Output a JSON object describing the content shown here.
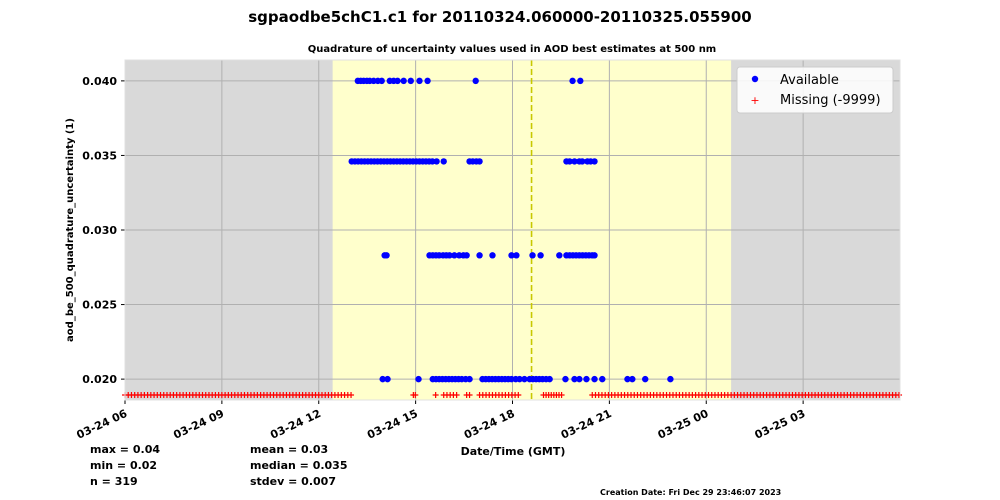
{
  "chart_data": {
    "type": "scatter",
    "title": "sgpaodbe5chC1.c1 for 20110324.060000-20110325.055900",
    "subtitle": "Quadrature of uncertainty values used in AOD best estimates at 500 nm",
    "xlabel": "Date/Time (GMT)",
    "ylabel": "aod_be_500_quadrature_uncertainty (1)",
    "x_units": "hours since 2011-03-24 00:00 GMT",
    "xlim": [
      6.0,
      30.0
    ],
    "ylim": [
      0.0186,
      0.0414
    ],
    "grid": true,
    "x_ticks": [
      {
        "value": 6,
        "label": "03-24 06"
      },
      {
        "value": 9,
        "label": "03-24 09"
      },
      {
        "value": 12,
        "label": "03-24 12"
      },
      {
        "value": 15,
        "label": "03-24 15"
      },
      {
        "value": 18,
        "label": "03-24 18"
      },
      {
        "value": 21,
        "label": "03-24 21"
      },
      {
        "value": 24,
        "label": "03-25 00"
      },
      {
        "value": 27,
        "label": "03-25 03"
      }
    ],
    "y_ticks": [
      {
        "value": 0.02,
        "label": "0.020"
      },
      {
        "value": 0.025,
        "label": "0.025"
      },
      {
        "value": 0.03,
        "label": "0.030"
      },
      {
        "value": 0.035,
        "label": "0.035"
      },
      {
        "value": 0.04,
        "label": "0.040"
      }
    ],
    "daylight_span": [
      12.43,
      24.77
    ],
    "solar_noon_line": 18.59,
    "legend": {
      "placement": "top-right",
      "entries": [
        "Available",
        "Missing (-9999)"
      ]
    },
    "colors": {
      "available": "#0000ff",
      "missing": "#ff0000",
      "daylight": "#ffffcc",
      "night": "#d9d9d9",
      "noon_line": "#c8c800"
    },
    "series": [
      {
        "name": "Available",
        "groups": [
          {
            "y": 0.04,
            "x": [
              13.21,
              13.3,
              13.39,
              13.49,
              13.58,
              13.7,
              13.83,
              13.95,
              14.2,
              14.32,
              14.44,
              14.63,
              14.85,
              15.12,
              15.37,
              16.86,
              19.86,
              20.1
            ]
          },
          {
            "y": 0.0346,
            "x": [
              13.02,
              13.12,
              13.22,
              13.32,
              13.42,
              13.52,
              13.62,
              13.72,
              13.82,
              13.92,
              14.02,
              14.12,
              14.22,
              14.32,
              14.42,
              14.52,
              14.62,
              14.72,
              14.82,
              14.92,
              15.02,
              15.12,
              15.22,
              15.32,
              15.42,
              15.52,
              15.65,
              15.87,
              16.67,
              16.77,
              16.88,
              16.98,
              19.67,
              19.77,
              19.92,
              20.07,
              20.16,
              20.32,
              20.42,
              20.54
            ]
          },
          {
            "y": 0.0283,
            "x": [
              14.04,
              14.1,
              15.43,
              15.53,
              15.63,
              15.73,
              15.85,
              15.95,
              16.05,
              16.2,
              16.35,
              16.48,
              16.58,
              16.98,
              17.38,
              17.97,
              18.12,
              18.62,
              18.87,
              19.45,
              19.67,
              19.77,
              19.87,
              19.97,
              20.07,
              20.17,
              20.27,
              20.37,
              20.47,
              20.54
            ]
          },
          {
            "y": 0.02,
            "x": [
              13.98,
              14.13,
              15.09,
              15.53,
              15.63,
              15.73,
              15.83,
              15.93,
              16.03,
              16.13,
              16.23,
              16.33,
              16.43,
              16.55,
              16.67,
              17.07,
              17.17,
              17.27,
              17.37,
              17.47,
              17.57,
              17.67,
              17.77,
              17.87,
              17.97,
              18.1,
              18.22,
              18.37,
              18.53,
              18.63,
              18.73,
              18.83,
              18.93,
              19.04,
              19.15,
              19.64,
              19.92,
              20.07,
              20.29,
              20.54,
              20.78,
              21.56,
              21.71,
              22.11,
              22.89
            ]
          }
        ]
      },
      {
        "name": "Missing (-9999)",
        "runs": [
          {
            "from": 6.0,
            "to": 13.0,
            "step": 0.1
          },
          {
            "from": 14.93,
            "to": 14.99,
            "step": 0.06
          },
          {
            "from": 15.62,
            "to": 15.62,
            "step": 0.1
          },
          {
            "from": 15.87,
            "to": 16.33,
            "step": 0.1
          },
          {
            "from": 16.58,
            "to": 16.67,
            "step": 0.09
          },
          {
            "from": 16.98,
            "to": 18.22,
            "step": 0.1
          },
          {
            "from": 18.96,
            "to": 19.52,
            "step": 0.08
          },
          {
            "from": 20.47,
            "to": 29.97,
            "step": 0.1
          }
        ]
      }
    ],
    "stats": {
      "max": "max = 0.04",
      "min": "min = 0.02",
      "n": "n = 319",
      "mean": "mean = 0.03",
      "median": "median = 0.035",
      "stdev": "stdev = 0.007"
    },
    "creation_date": "Creation Date: Fri Dec 29 23:46:07 2023"
  }
}
